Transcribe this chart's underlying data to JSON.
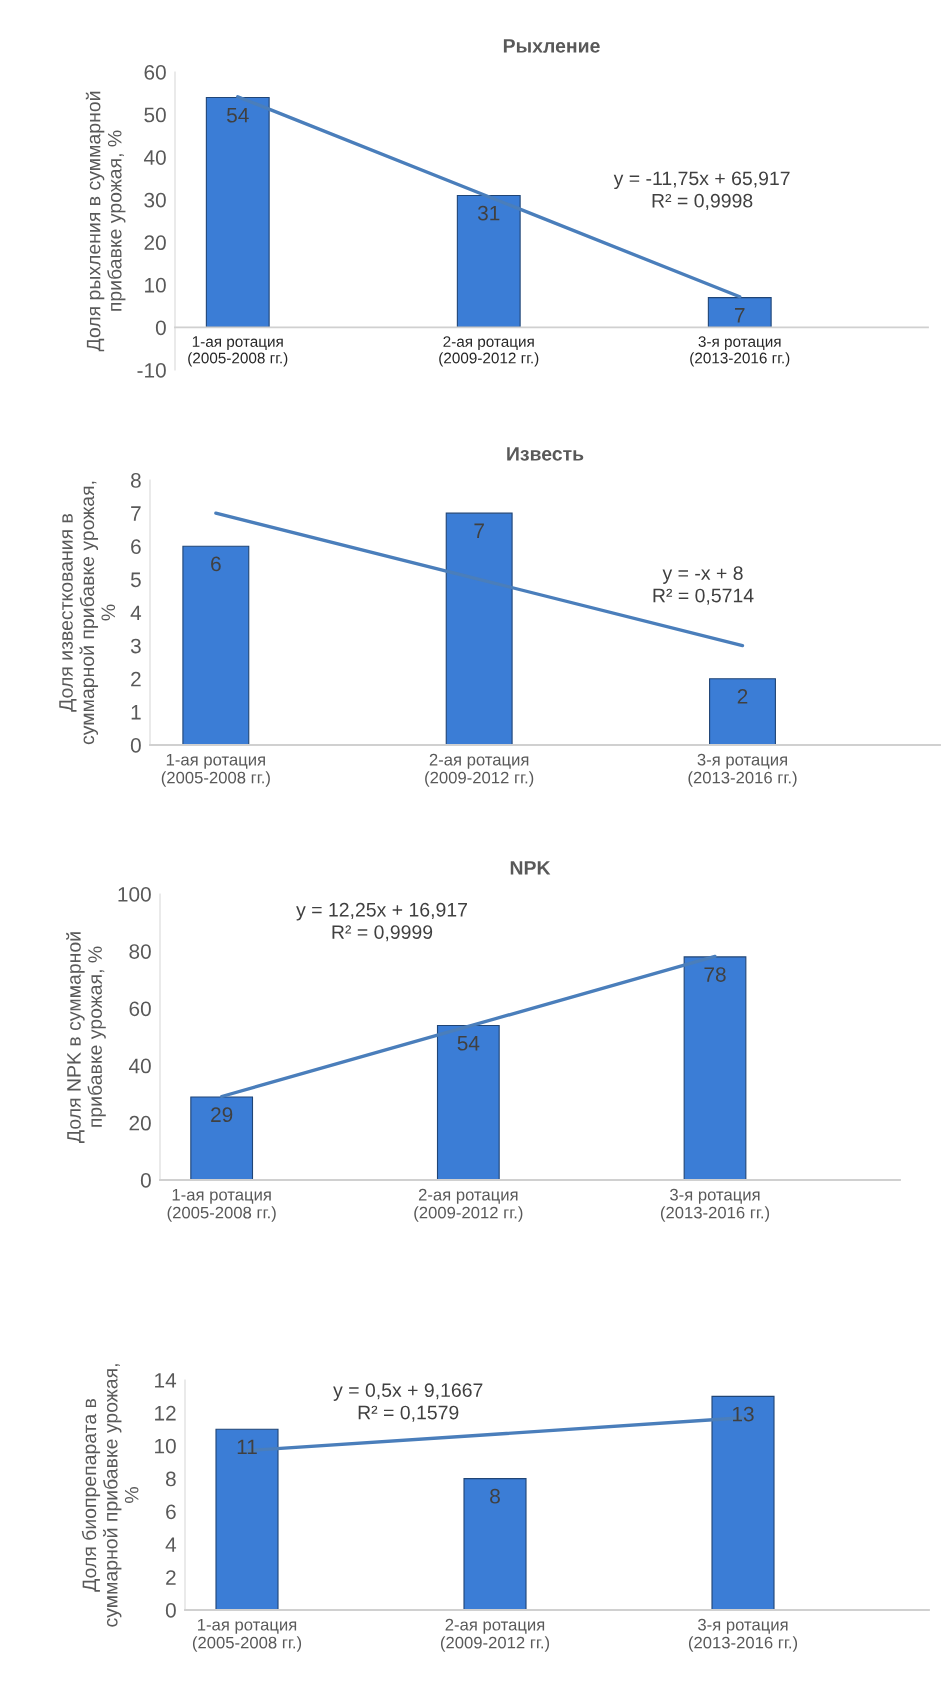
{
  "chart_data": [
    {
      "type": "bar",
      "title": "Рыхление",
      "ylabel": "Доля рыхления в суммарной прибавке урожая, %",
      "categories": [
        "1-ая ротация (2005-2008 гг.)",
        "2-ая ротация (2009-2012 гг.)",
        "3-я ротация (2013-2016 гг.)"
      ],
      "series": [
        {
          "color": "#3b7dd6",
          "values": [
            54,
            31,
            7
          ],
          "value_labels": [
            "54",
            "31",
            "7"
          ]
        },
        {
          "type": "line",
          "color": "#4a7ebb",
          "values": [
            54.2,
            30.7,
            7.2
          ]
        }
      ],
      "ylim": [
        -10,
        60
      ],
      "yticks": [
        -10,
        0,
        10,
        20,
        30,
        40,
        50,
        60
      ],
      "annotations": [
        "y = -11,75x + 65,917",
        "R² = 0,9998"
      ]
    },
    {
      "type": "bar",
      "title": "Известь",
      "ylabel": "Доля известкования в суммарной прибавке урожая, %",
      "categories": [
        "1-ая ротация (2005-2008 гг.)",
        "2-ая ротация (2009-2012 гг.)",
        "3-я ротация (2013-2016 гг.)"
      ],
      "series": [
        {
          "color": "#3b7dd6",
          "values": [
            6,
            7,
            2
          ],
          "value_labels": [
            "6",
            "7",
            "2"
          ]
        },
        {
          "type": "line",
          "color": "#4a7ebb",
          "values": [
            7,
            5,
            3
          ]
        }
      ],
      "ylim": [
        0,
        8
      ],
      "yticks": [
        0,
        1,
        2,
        3,
        4,
        5,
        6,
        7,
        8
      ],
      "annotations": [
        "y = -x + 8",
        "R² = 0,5714"
      ]
    },
    {
      "type": "bar",
      "title": "NPK",
      "ylabel": "Доля NPK в суммарной прибавке урожая, %",
      "categories": [
        "1-ая ротация (2005-2008 гг.)",
        "2-ая ротация (2009-2012 гг.)",
        "3-я ротация (2013-2016 гг.)"
      ],
      "series": [
        {
          "color": "#3b7dd6",
          "values": [
            29,
            54,
            78
          ],
          "value_labels": [
            "29",
            "54",
            "78"
          ]
        },
        {
          "type": "line",
          "color": "#4a7ebb",
          "values": [
            29.2,
            53.7,
            78.2
          ]
        }
      ],
      "ylim": [
        0,
        100
      ],
      "yticks": [
        0,
        20,
        40,
        60,
        80,
        100
      ],
      "annotations": [
        "y = 12,25x + 16,917",
        "R² = 0,9999"
      ]
    },
    {
      "type": "bar",
      "ylabel": "Доля биопрепарата в суммарной прибавке урожая, %",
      "categories": [
        "1-ая ротация (2005-2008 гг.)",
        "2-ая ротация (2009-2012 гг.)",
        "3-я ротация (2013-2016 гг.)"
      ],
      "series": [
        {
          "color": "#3b7dd6",
          "values": [
            11,
            8,
            13
          ],
          "value_labels": [
            "11",
            "8",
            "13"
          ]
        },
        {
          "type": "line",
          "color": "#4a7ebb",
          "values": [
            9.7,
            10.7,
            11.7
          ]
        }
      ],
      "ylim": [
        0,
        14
      ],
      "yticks": [
        0,
        2,
        4,
        6,
        8,
        10,
        12,
        14
      ],
      "annotations": [
        "y = 0,5x + 9,1667",
        "R² = 0,1579"
      ]
    }
  ]
}
